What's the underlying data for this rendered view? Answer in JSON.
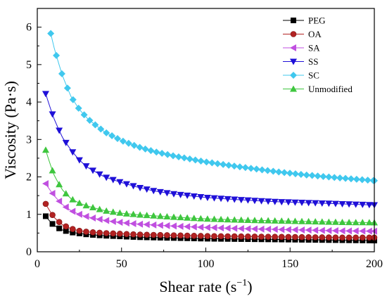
{
  "chart_data": {
    "type": "line",
    "title": "",
    "xlabel": "Shear rate (s",
    "xlabel_sup": "−1",
    "xlabel_close": ")",
    "ylabel": "Viscosity (Pa·s)",
    "xlim": [
      0,
      200
    ],
    "ylim": [
      0,
      6.5
    ],
    "xticks": [
      0,
      50,
      100,
      150,
      200
    ],
    "yticks": [
      0,
      1,
      2,
      3,
      4,
      5,
      6
    ],
    "grid": false,
    "legend_position": "top-right",
    "series": [
      {
        "name": "PEG",
        "color": "#000000",
        "marker": "square",
        "x": [
          5,
          10,
          15,
          20,
          25,
          30,
          40,
          50,
          60,
          80,
          100,
          120,
          140,
          160,
          180,
          200
        ],
        "y": [
          0.95,
          0.7,
          0.58,
          0.52,
          0.49,
          0.46,
          0.43,
          0.41,
          0.39,
          0.37,
          0.35,
          0.34,
          0.33,
          0.32,
          0.31,
          0.3
        ]
      },
      {
        "name": "OA",
        "color": "#b22222",
        "marker": "circle",
        "x": [
          5,
          10,
          15,
          20,
          25,
          30,
          40,
          50,
          60,
          80,
          100,
          120,
          140,
          160,
          180,
          200
        ],
        "y": [
          1.28,
          0.92,
          0.72,
          0.62,
          0.56,
          0.53,
          0.5,
          0.48,
          0.46,
          0.44,
          0.42,
          0.41,
          0.4,
          0.39,
          0.38,
          0.38
        ]
      },
      {
        "name": "SA",
        "color": "#c04fe0",
        "marker": "triangle-left",
        "x": [
          5,
          10,
          15,
          20,
          25,
          30,
          40,
          50,
          60,
          80,
          100,
          120,
          140,
          160,
          180,
          200
        ],
        "y": [
          1.82,
          1.5,
          1.26,
          1.1,
          1.0,
          0.93,
          0.84,
          0.78,
          0.74,
          0.69,
          0.65,
          0.62,
          0.6,
          0.58,
          0.56,
          0.55
        ]
      },
      {
        "name": "SS",
        "color": "#1f10d8",
        "marker": "triangle-down",
        "x": [
          5,
          10,
          15,
          20,
          25,
          30,
          40,
          50,
          60,
          70,
          80,
          100,
          120,
          140,
          160,
          180,
          200
        ],
        "y": [
          4.22,
          3.55,
          3.05,
          2.72,
          2.45,
          2.25,
          2.0,
          1.85,
          1.72,
          1.62,
          1.55,
          1.45,
          1.39,
          1.34,
          1.31,
          1.28,
          1.25
        ]
      },
      {
        "name": "SC",
        "color": "#40c8ee",
        "marker": "diamond",
        "x": [
          8,
          10,
          15,
          20,
          25,
          30,
          40,
          50,
          60,
          70,
          80,
          100,
          120,
          140,
          160,
          180,
          200
        ],
        "y": [
          5.83,
          5.45,
          4.7,
          4.15,
          3.8,
          3.55,
          3.2,
          2.97,
          2.8,
          2.67,
          2.57,
          2.4,
          2.27,
          2.15,
          2.05,
          1.97,
          1.9
        ]
      },
      {
        "name": "Unmodified",
        "color": "#3ec63e",
        "marker": "triangle-up",
        "x": [
          5,
          10,
          15,
          20,
          25,
          30,
          40,
          50,
          60,
          80,
          100,
          120,
          140,
          160,
          180,
          200
        ],
        "y": [
          2.72,
          2.05,
          1.65,
          1.42,
          1.3,
          1.22,
          1.1,
          1.03,
          0.99,
          0.93,
          0.88,
          0.85,
          0.83,
          0.81,
          0.79,
          0.78
        ]
      }
    ]
  }
}
